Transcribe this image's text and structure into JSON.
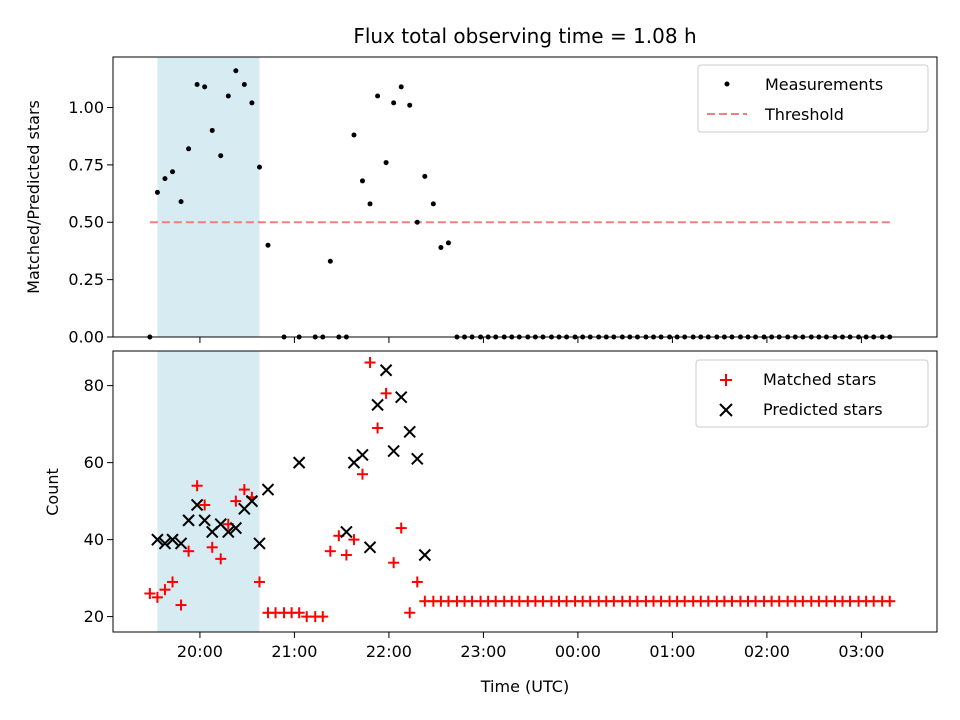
{
  "chart_data": {
    "type": "scatter",
    "title": "Flux total observing time = 1.08 h",
    "xlabel": "Time (UTC)",
    "x_unit": "hours since 00:00 (values < 0 are the previous evening)",
    "x_ticks": [
      {
        "value": -4,
        "label": "20:00"
      },
      {
        "value": -3,
        "label": "21:00"
      },
      {
        "value": -2,
        "label": "22:00"
      },
      {
        "value": -1,
        "label": "23:00"
      },
      {
        "value": 0,
        "label": "00:00"
      },
      {
        "value": 1,
        "label": "01:00"
      },
      {
        "value": 2,
        "label": "02:00"
      },
      {
        "value": 3,
        "label": "03:00"
      }
    ],
    "xlim": [
      -4.92,
      3.8
    ],
    "shaded_span": {
      "x0": -4.45,
      "x1": -3.37,
      "color": "#add8e6"
    },
    "top_panel": {
      "ylabel": "Matched/Predicted stars",
      "ylim": [
        0,
        1.22
      ],
      "y_ticks": [
        0.0,
        0.25,
        0.5,
        0.75,
        1.0
      ],
      "y_tick_labels": [
        "0.00",
        "0.25",
        "0.50",
        "0.75",
        "1.00"
      ],
      "legend": [
        {
          "label": "Measurements",
          "marker": "dot",
          "color": "#000000"
        },
        {
          "label": "Threshold",
          "marker": "dashed-line",
          "color": "#f08080"
        }
      ],
      "threshold": {
        "value": 0.5,
        "x_start": -4.53,
        "x_end": 3.33,
        "color": "#f08080"
      },
      "measurements": {
        "x": [
          -4.53,
          -4.45,
          -4.37,
          -4.29,
          -4.2,
          -4.12,
          -4.03,
          -3.95,
          -3.87,
          -3.78,
          -3.7,
          -3.62,
          -3.53,
          -3.45,
          -3.37,
          -3.28,
          -3.11,
          -2.95,
          -2.78,
          -2.7,
          -2.62,
          -2.53,
          -2.45,
          -2.37,
          -2.28,
          -2.2,
          -2.12,
          -2.03,
          -1.95,
          -1.87,
          -1.78,
          -1.7,
          -1.62,
          -1.53,
          -1.45,
          -1.37,
          -1.28,
          -1.2,
          -1.12,
          -1.03,
          -0.95,
          -0.87,
          -0.78,
          -0.7,
          -0.62,
          -0.53,
          -0.45,
          -0.37,
          -0.28,
          -0.2,
          -0.12,
          -0.03,
          0.05,
          0.13,
          0.22,
          0.3,
          0.38,
          0.47,
          0.55,
          0.63,
          0.72,
          0.8,
          0.88,
          0.97,
          1.05,
          1.13,
          1.22,
          1.3,
          1.38,
          1.47,
          1.55,
          1.63,
          1.72,
          1.8,
          1.88,
          1.97,
          2.05,
          2.13,
          2.22,
          2.3,
          2.38,
          2.47,
          2.55,
          2.63,
          2.72,
          2.8,
          2.88,
          2.97,
          3.05,
          3.13,
          3.22,
          3.3
        ],
        "y": [
          0.0,
          0.63,
          0.69,
          0.72,
          0.59,
          0.82,
          1.1,
          1.09,
          0.9,
          0.79,
          1.05,
          1.16,
          1.1,
          1.02,
          0.74,
          0.4,
          0.0,
          0.0,
          0.0,
          0.0,
          0.33,
          0.0,
          0.0,
          0.88,
          0.68,
          0.58,
          1.05,
          0.76,
          1.02,
          1.09,
          1.01,
          0.5,
          0.7,
          0.58,
          0.39,
          0.41,
          0.0,
          0.0,
          0.0,
          0.0,
          0.0,
          0.0,
          0.0,
          0.0,
          0.0,
          0.0,
          0.0,
          0.0,
          0.0,
          0.0,
          0.0,
          0.0,
          0.0,
          0.0,
          0.0,
          0.0,
          0.0,
          0.0,
          0.0,
          0.0,
          0.0,
          0.0,
          0.0,
          0.0,
          0.0,
          0.0,
          0.0,
          0.0,
          0.0,
          0.0,
          0.0,
          0.0,
          0.0,
          0.0,
          0.0,
          0.0,
          0.0,
          0.0,
          0.0,
          0.0,
          0.0,
          0.0,
          0.0,
          0.0,
          0.0,
          0.0,
          0.0,
          0.0,
          0.0,
          0.0,
          0.0,
          0.0
        ]
      }
    },
    "bottom_panel": {
      "ylabel": "Count",
      "ylim": [
        16,
        89
      ],
      "y_ticks": [
        20,
        40,
        60,
        80
      ],
      "y_tick_labels": [
        "20",
        "40",
        "60",
        "80"
      ],
      "legend": [
        {
          "label": "Matched stars",
          "marker": "plus",
          "color": "#ff0000"
        },
        {
          "label": "Predicted stars",
          "marker": "x",
          "color": "#000000"
        }
      ],
      "matched": {
        "x": [
          -4.53,
          -4.45,
          -4.37,
          -4.29,
          -4.2,
          -4.12,
          -4.03,
          -3.95,
          -3.87,
          -3.78,
          -3.7,
          -3.62,
          -3.53,
          -3.45,
          -3.37,
          -3.28,
          -3.2,
          -3.11,
          -3.03,
          -2.95,
          -2.87,
          -2.78,
          -2.7,
          -2.62,
          -2.53,
          -2.45,
          -2.37,
          -2.28,
          -2.2,
          -2.12,
          -2.03,
          -1.95,
          -1.87,
          -1.78,
          -1.7,
          -1.62,
          -1.53,
          -1.45,
          -1.37,
          -1.28,
          -1.2,
          -1.12,
          -1.03,
          -0.95,
          -0.87,
          -0.78,
          -0.7,
          -0.62,
          -0.53,
          -0.45,
          -0.37,
          -0.28,
          -0.2,
          -0.12,
          -0.03,
          0.05,
          0.13,
          0.22,
          0.3,
          0.38,
          0.47,
          0.55,
          0.63,
          0.72,
          0.8,
          0.88,
          0.97,
          1.05,
          1.13,
          1.22,
          1.3,
          1.38,
          1.47,
          1.55,
          1.63,
          1.72,
          1.8,
          1.88,
          1.97,
          2.05,
          2.13,
          2.22,
          2.3,
          2.38,
          2.47,
          2.55,
          2.63,
          2.72,
          2.8,
          2.88,
          2.97,
          3.05,
          3.13,
          3.22,
          3.3
        ],
        "y": [
          26,
          25,
          27,
          29,
          23,
          37,
          54,
          49,
          38,
          35,
          44,
          50,
          53,
          51,
          29,
          21,
          21,
          21,
          21,
          21,
          20,
          20,
          20,
          37,
          41,
          36,
          40,
          57,
          86,
          69,
          78,
          34,
          43,
          21,
          29,
          24,
          24,
          24,
          24,
          24,
          24,
          24,
          24,
          24,
          24,
          24,
          24,
          24,
          24,
          24,
          24,
          24,
          24,
          24,
          24,
          24,
          24,
          24,
          24,
          24,
          24,
          24,
          24,
          24,
          24,
          24,
          24,
          24,
          24,
          24,
          24,
          24,
          24,
          24,
          24,
          24,
          24,
          24,
          24,
          24,
          24,
          24,
          24,
          24,
          24,
          24,
          24,
          24,
          24,
          24,
          24,
          24,
          24,
          24,
          24
        ],
        "display_indices": [
          0,
          1,
          2,
          3,
          4,
          5,
          6,
          7,
          8,
          9,
          10,
          11,
          12,
          13,
          14,
          15,
          16,
          17,
          18,
          19,
          20,
          21,
          22,
          23,
          24,
          25,
          26,
          27,
          28,
          29,
          30,
          31,
          32,
          33,
          34,
          35,
          36,
          37,
          38,
          39,
          40,
          41,
          42,
          43,
          44,
          45,
          46,
          47,
          48,
          49,
          50,
          51,
          52,
          53,
          54,
          55,
          56,
          57,
          58,
          59,
          60,
          61,
          62,
          63,
          64,
          65,
          66,
          67,
          68,
          69,
          70,
          71,
          72,
          73,
          74,
          75,
          76,
          77,
          78,
          79,
          80,
          81,
          82,
          83,
          84,
          85,
          86,
          87,
          88,
          89,
          90,
          91,
          92,
          93,
          94
        ]
      },
      "predicted": {
        "x": [
          -4.45,
          -4.37,
          -4.29,
          -4.2,
          -4.12,
          -4.03,
          -3.95,
          -3.87,
          -3.78,
          -3.7,
          -3.62,
          -3.53,
          -3.45,
          -3.37,
          -3.28,
          -2.95,
          -2.45,
          -2.37,
          -2.28,
          -2.2,
          -2.12,
          -2.03,
          -1.95,
          -1.87,
          -1.78,
          -1.7,
          -1.62
        ],
        "y": [
          40,
          39,
          40,
          39,
          45,
          49,
          45,
          42,
          44,
          42,
          43,
          48,
          50,
          39,
          53,
          60,
          42,
          60,
          62,
          38,
          75,
          84,
          63,
          77,
          68,
          61,
          36
        ]
      }
    }
  }
}
